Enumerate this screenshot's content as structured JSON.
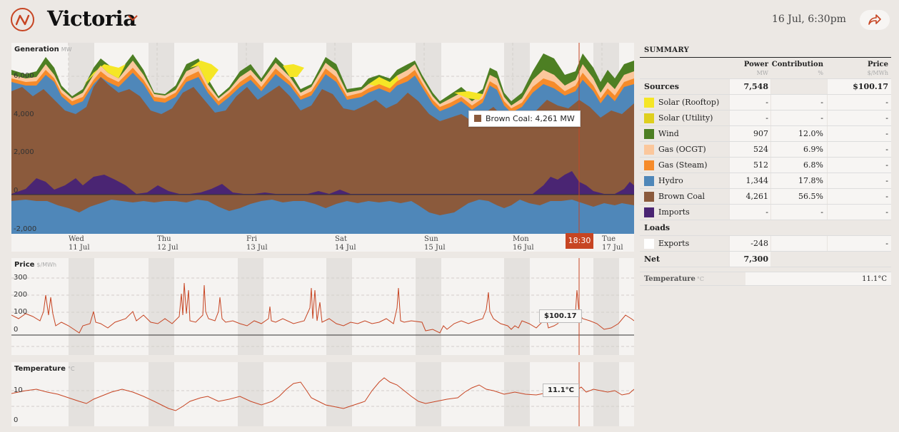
{
  "header": {
    "region_title": "Victoria",
    "datetime": "16 Jul, 6:30pm"
  },
  "charts": {
    "generation": {
      "title": "Generation",
      "unit": "MW",
      "y_ticks": [
        "6,000",
        "4,000",
        "2,000",
        "0",
        "-2,000"
      ],
      "tooltip": "Brown Coal: 4,261 MW",
      "tooltip_color": "#8b5a3c"
    },
    "price": {
      "title": "Price",
      "unit": "$/MWh",
      "y_ticks": [
        "300",
        "200",
        "100",
        "0"
      ],
      "value_label": "$100.17"
    },
    "temperature": {
      "title": "Temperature",
      "unit": "°C",
      "y_ticks": [
        "10",
        "0"
      ],
      "value_label": "11.1°C"
    },
    "days": [
      {
        "day": "Wed",
        "date": "11 Jul"
      },
      {
        "day": "Thu",
        "date": "12 Jul"
      },
      {
        "day": "Fri",
        "date": "13 Jul"
      },
      {
        "day": "Sat",
        "date": "14 Jul"
      },
      {
        "day": "Sun",
        "date": "15 Jul"
      },
      {
        "day": "Mon",
        "date": "16 Jul"
      },
      {
        "day": "Tue",
        "date": "17 Jul"
      }
    ],
    "cursor_time": "18:30",
    "accent_color": "#c74523"
  },
  "summary": {
    "title": "SUMMARY",
    "col_power": "Power",
    "col_power_unit": "MW",
    "col_contribution": "Contribution",
    "col_contribution_unit": "%",
    "col_price": "Price",
    "col_price_unit": "$/MWh",
    "sources_label": "Sources",
    "sources_power": "7,548",
    "sources_price": "$100.17",
    "sources": [
      {
        "name": "Solar (Rooftop)",
        "color": "#f5e626",
        "power": "-",
        "contribution": "-",
        "price": "-"
      },
      {
        "name": "Solar (Utility)",
        "color": "#dfcf1e",
        "power": "-",
        "contribution": "-",
        "price": "-"
      },
      {
        "name": "Wind",
        "color": "#4d7f23",
        "power": "907",
        "contribution": "12.0%",
        "price": "-"
      },
      {
        "name": "Gas (OCGT)",
        "color": "#fbc79c",
        "power": "524",
        "contribution": "6.9%",
        "price": "-"
      },
      {
        "name": "Gas (Steam)",
        "color": "#f68b2a",
        "power": "512",
        "contribution": "6.8%",
        "price": "-"
      },
      {
        "name": "Hydro",
        "color": "#4f87b9",
        "power": "1,344",
        "contribution": "17.8%",
        "price": "-"
      },
      {
        "name": "Brown Coal",
        "color": "#8b5a3c",
        "power": "4,261",
        "contribution": "56.5%",
        "price": "-"
      },
      {
        "name": "Imports",
        "color": "#4a2573",
        "power": "-",
        "contribution": "-",
        "price": "-"
      }
    ],
    "loads_label": "Loads",
    "loads": [
      {
        "name": "Exports",
        "color": "#ffffff",
        "power": "-248",
        "contribution": "",
        "price": "-"
      }
    ],
    "net_label": "Net",
    "net_power": "7,300",
    "temperature_label": "Temperature",
    "temperature_unit": "°C",
    "temperature_value": "11.1°C"
  }
}
